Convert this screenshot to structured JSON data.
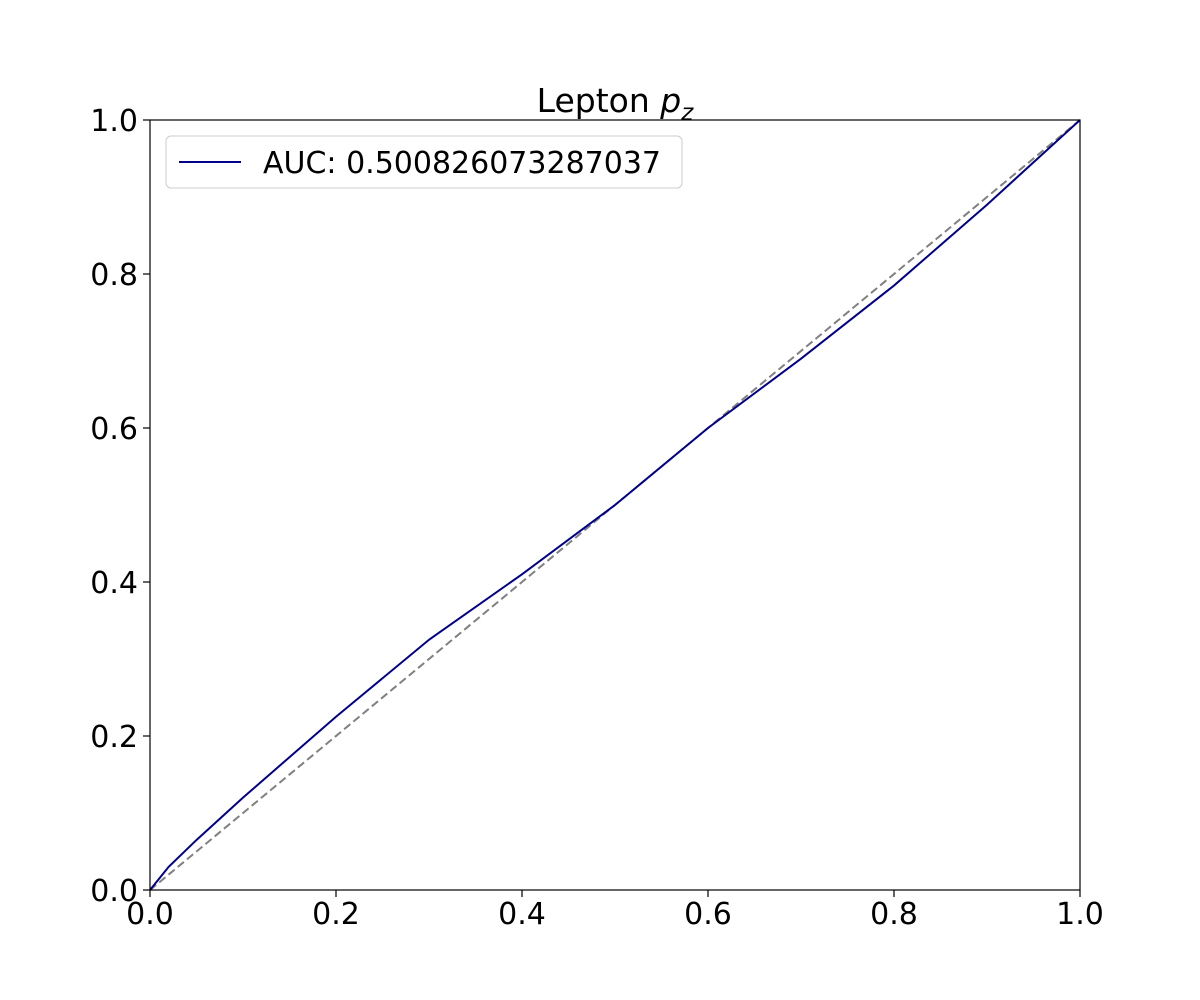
{
  "chart_data": {
    "type": "line",
    "title": {
      "text": "Lepton",
      "symbol": "p",
      "subscript": "z"
    },
    "x": [
      0,
      0.02,
      0.05,
      0.1,
      0.2,
      0.3,
      0.4,
      0.5,
      0.6,
      0.7,
      0.8,
      0.9,
      1.0
    ],
    "series": [
      {
        "name": "AUC: 0.500826073287037",
        "color": "#00008b",
        "values": [
          0,
          0.03,
          0.065,
          0.12,
          0.225,
          0.325,
          0.41,
          0.5,
          0.6,
          0.69,
          0.785,
          0.89,
          1.0
        ]
      }
    ],
    "reference_line": {
      "x": [
        0,
        1
      ],
      "values": [
        0,
        1
      ],
      "color": "#808080",
      "dashed": true
    },
    "xlim": [
      0,
      1
    ],
    "ylim": [
      0,
      1
    ],
    "xticks": [
      {
        "value": 0,
        "label": "0.0"
      },
      0.2,
      0.4,
      0.6,
      0.8,
      {
        "value": 1,
        "label": "1.0"
      }
    ],
    "yticks": [
      {
        "value": 0,
        "label": "0.0"
      },
      0.2,
      0.4,
      0.6,
      0.8,
      {
        "value": 1,
        "label": "1.0"
      }
    ],
    "grid": false,
    "legend": "upper left"
  }
}
